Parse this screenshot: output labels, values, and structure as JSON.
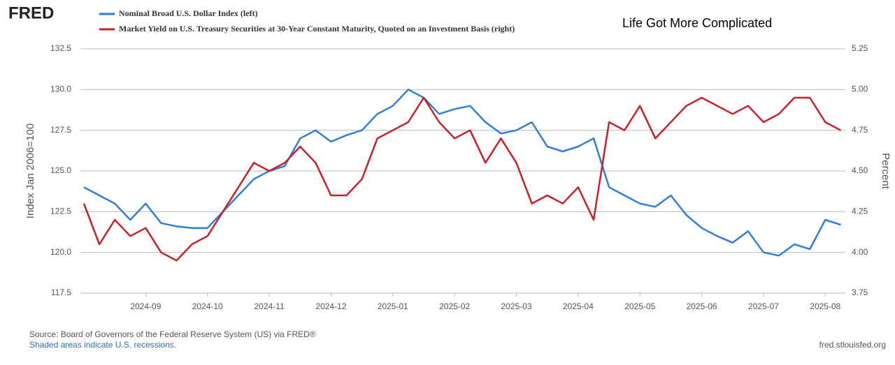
{
  "logo": "FRED",
  "chart_data": {
    "type": "line",
    "title": "Life Got More Complicated",
    "y_label": "Index Jan 2006=100",
    "y2_label": "Percent",
    "source": "Source: Board of Governors of the Federal Reserve System (US) via FRED®",
    "note": "Shaded areas indicate U.S. recessions.",
    "site": "fred.stlouisfed.org",
    "categories": [
      null,
      null,
      null,
      null,
      "2024-09",
      null,
      null,
      null,
      "2024-10",
      null,
      null,
      null,
      "2024-11",
      null,
      null,
      null,
      "2024-12",
      null,
      null,
      null,
      "2025-01",
      null,
      null,
      null,
      "2025-02",
      null,
      null,
      null,
      "2025-03",
      null,
      null,
      null,
      "2025-04",
      null,
      null,
      null,
      "2025-05",
      null,
      null,
      null,
      "2025-06",
      null,
      null,
      null,
      "2025-07",
      null,
      null,
      null,
      "2025-08",
      null
    ],
    "series": [
      {
        "name": "Nominal Broad U.S. Dollar Index (left)",
        "color": "#2f7ed8",
        "values": [
          124.0,
          123.5,
          123.0,
          122.0,
          123.0,
          121.8,
          121.6,
          121.5,
          121.5,
          122.5,
          123.5,
          124.5,
          125.0,
          125.3,
          127.0,
          127.5,
          126.8,
          127.2,
          127.5,
          128.5,
          129.0,
          130.0,
          129.5,
          128.5,
          128.8,
          129.0,
          128.0,
          127.3,
          127.5,
          128.0,
          126.5,
          126.2,
          126.5,
          127.0,
          124.0,
          123.5,
          123.0,
          122.8,
          123.5,
          122.3,
          121.5,
          121.0,
          120.6,
          121.3,
          120.0,
          119.8,
          120.5,
          120.2,
          122.0,
          121.7
        ]
      },
      {
        "name": "Market Yield on U.S. Treasury Securities at 30-Year Constant Maturity, Quoted on an Investment Basis (right)",
        "color": "#c8202a",
        "axis": "y2",
        "values": [
          4.3,
          4.05,
          4.2,
          4.1,
          4.15,
          4.0,
          3.95,
          4.05,
          4.1,
          4.25,
          4.4,
          4.55,
          4.5,
          4.55,
          4.65,
          4.55,
          4.35,
          4.35,
          4.45,
          4.7,
          4.75,
          4.8,
          4.95,
          4.8,
          4.7,
          4.75,
          4.55,
          4.7,
          4.55,
          4.3,
          4.35,
          4.3,
          4.4,
          4.2,
          4.8,
          4.75,
          4.9,
          4.7,
          4.8,
          4.9,
          4.95,
          4.9,
          4.85,
          4.9,
          4.8,
          4.85,
          4.95,
          4.95,
          4.8,
          4.75
        ]
      }
    ],
    "ylim": [
      117.5,
      132.5
    ],
    "yticks": [
      117.5,
      {
        "value": 120,
        "label": "120.0"
      },
      122.5,
      {
        "value": 125,
        "label": "125.0"
      },
      127.5,
      {
        "value": 130,
        "label": "130.0"
      },
      132.5
    ],
    "y2lim": [
      3.75,
      5.25
    ],
    "y2ticks": [
      3.75,
      {
        "value": 4,
        "label": "4.00"
      },
      4.25,
      {
        "value": 4.5,
        "label": "4.50"
      },
      4.75,
      {
        "value": 5,
        "label": "5.00"
      },
      5.25
    ],
    "grid": true
  }
}
